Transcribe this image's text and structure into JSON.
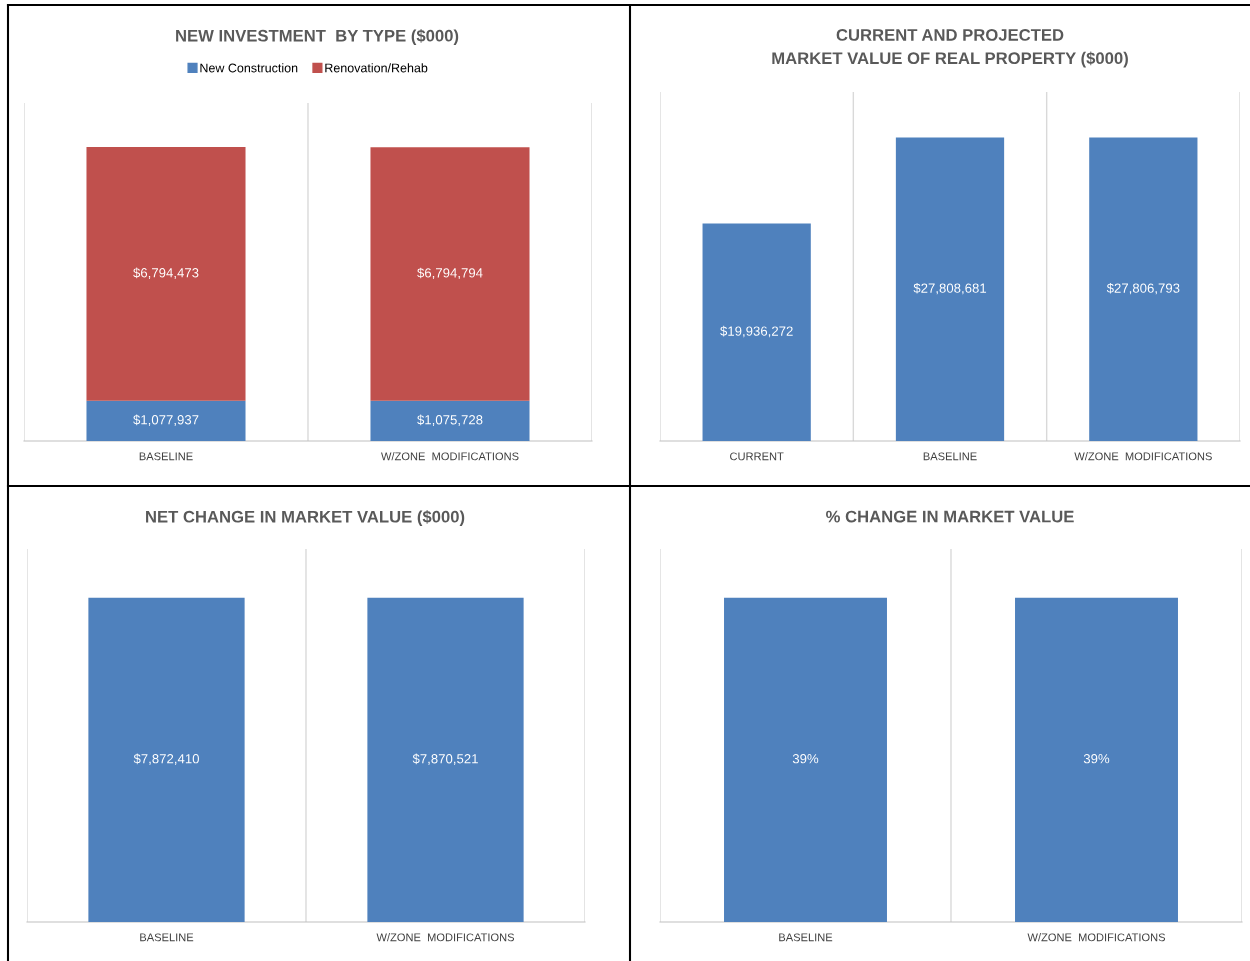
{
  "chart_data": [
    {
      "type": "bar",
      "title": "NEW INVESTMENT  BY TYPE ($000)",
      "categories": [
        "BASELINE",
        "W/ZONE  MODIFICATIONS"
      ],
      "stacked": true,
      "legend": "top",
      "grid": "x",
      "series": [
        {
          "name": "New Construction",
          "color": "#4f81bd",
          "values": [
            1077937,
            1075728
          ],
          "value_labels": [
            "$1,077,937",
            "$1,075,728"
          ]
        },
        {
          "name": "Renovation/Rehab",
          "color": "#c0504d",
          "values": [
            6794473,
            6794794
          ],
          "value_labels": [
            "$6,794,473",
            "$6,794,794"
          ]
        }
      ]
    },
    {
      "type": "bar",
      "title": "CURRENT AND PROJECTED\nMARKET VALUE OF REAL PROPERTY ($000)",
      "categories": [
        "CURRENT",
        "BASELINE",
        "W/ZONE  MODIFICATIONS"
      ],
      "grid": "x",
      "series": [
        {
          "color": "#4f81bd",
          "values": [
            19936272,
            27808681,
            27806793
          ],
          "value_labels": [
            "$19,936,272",
            "$27,808,681",
            "$27,806,793"
          ]
        }
      ]
    },
    {
      "type": "bar",
      "title": "NET CHANGE IN MARKET VALUE ($000)",
      "categories": [
        "BASELINE",
        "W/ZONE  MODIFICATIONS"
      ],
      "grid": "x",
      "series": [
        {
          "color": "#4f81bd",
          "values": [
            7872410,
            7870521
          ],
          "value_labels": [
            "$7,872,410",
            "$7,870,521"
          ]
        }
      ]
    },
    {
      "type": "bar",
      "title": "% CHANGE IN MARKET VALUE",
      "categories": [
        "BASELINE",
        "W/ZONE  MODIFICATIONS"
      ],
      "grid": "x",
      "series": [
        {
          "color": "#4f81bd",
          "values": [
            39,
            39
          ],
          "value_labels": [
            "39%",
            "39%"
          ]
        }
      ]
    }
  ]
}
